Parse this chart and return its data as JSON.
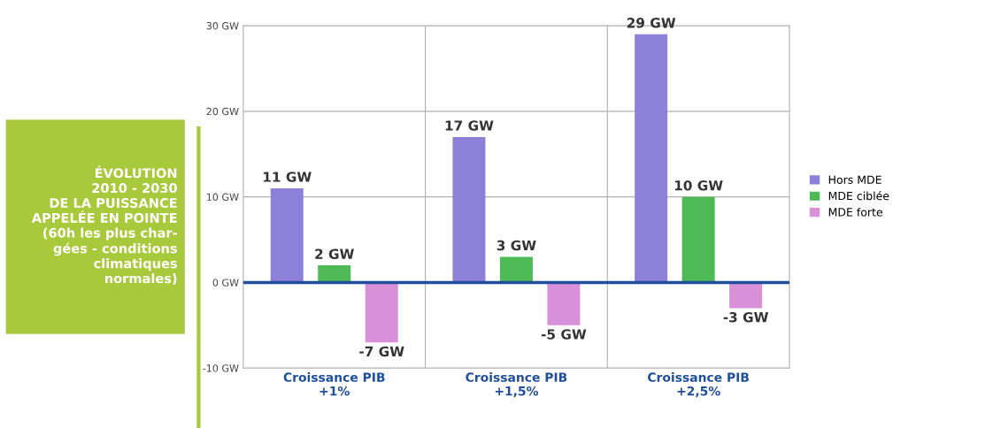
{
  "chart_data": {
    "type": "bar",
    "title": "ÉVOLUTION\n2010 - 2030\nDE LA PUISSANCE\nAPPELÉE EN POINTE\n(60h les plus char-\ngées - conditions\nclimatiques\nnormales)",
    "categories": [
      "Croissance PIB\n+1%",
      "Croissance PIB\n+1,5%",
      "Croissance PIB\n+2,5%"
    ],
    "series": [
      {
        "name": "Hors MDE",
        "color": "#8d80d8",
        "values": [
          11,
          17,
          29
        ],
        "value_labels": [
          "11 GW",
          "17 GW",
          "29 GW"
        ]
      },
      {
        "name": "MDE ciblée",
        "color": "#4dba55",
        "values": [
          2,
          3,
          10
        ],
        "value_labels": [
          "2 GW",
          "3 GW",
          "10 GW"
        ]
      },
      {
        "name": "MDE forte",
        "color": "#d890d8",
        "values": [
          -7,
          -5,
          -3
        ],
        "value_labels": [
          "-7 GW",
          "-5 GW",
          "-3 GW"
        ]
      }
    ],
    "ylim": [
      -10,
      30
    ],
    "yticks": [
      {
        "value": -10,
        "label": "-10 GW"
      },
      {
        "value": 0,
        "label": "0 GW"
      },
      {
        "value": 10,
        "label": "10 GW"
      },
      {
        "value": 20,
        "label": "20 GW"
      },
      {
        "value": 30,
        "label": "30 GW"
      }
    ],
    "ref_lines": [
      {
        "axis": "y",
        "value": 0,
        "color": "#1f4e9a"
      }
    ],
    "grid": "y",
    "legend": "right"
  }
}
